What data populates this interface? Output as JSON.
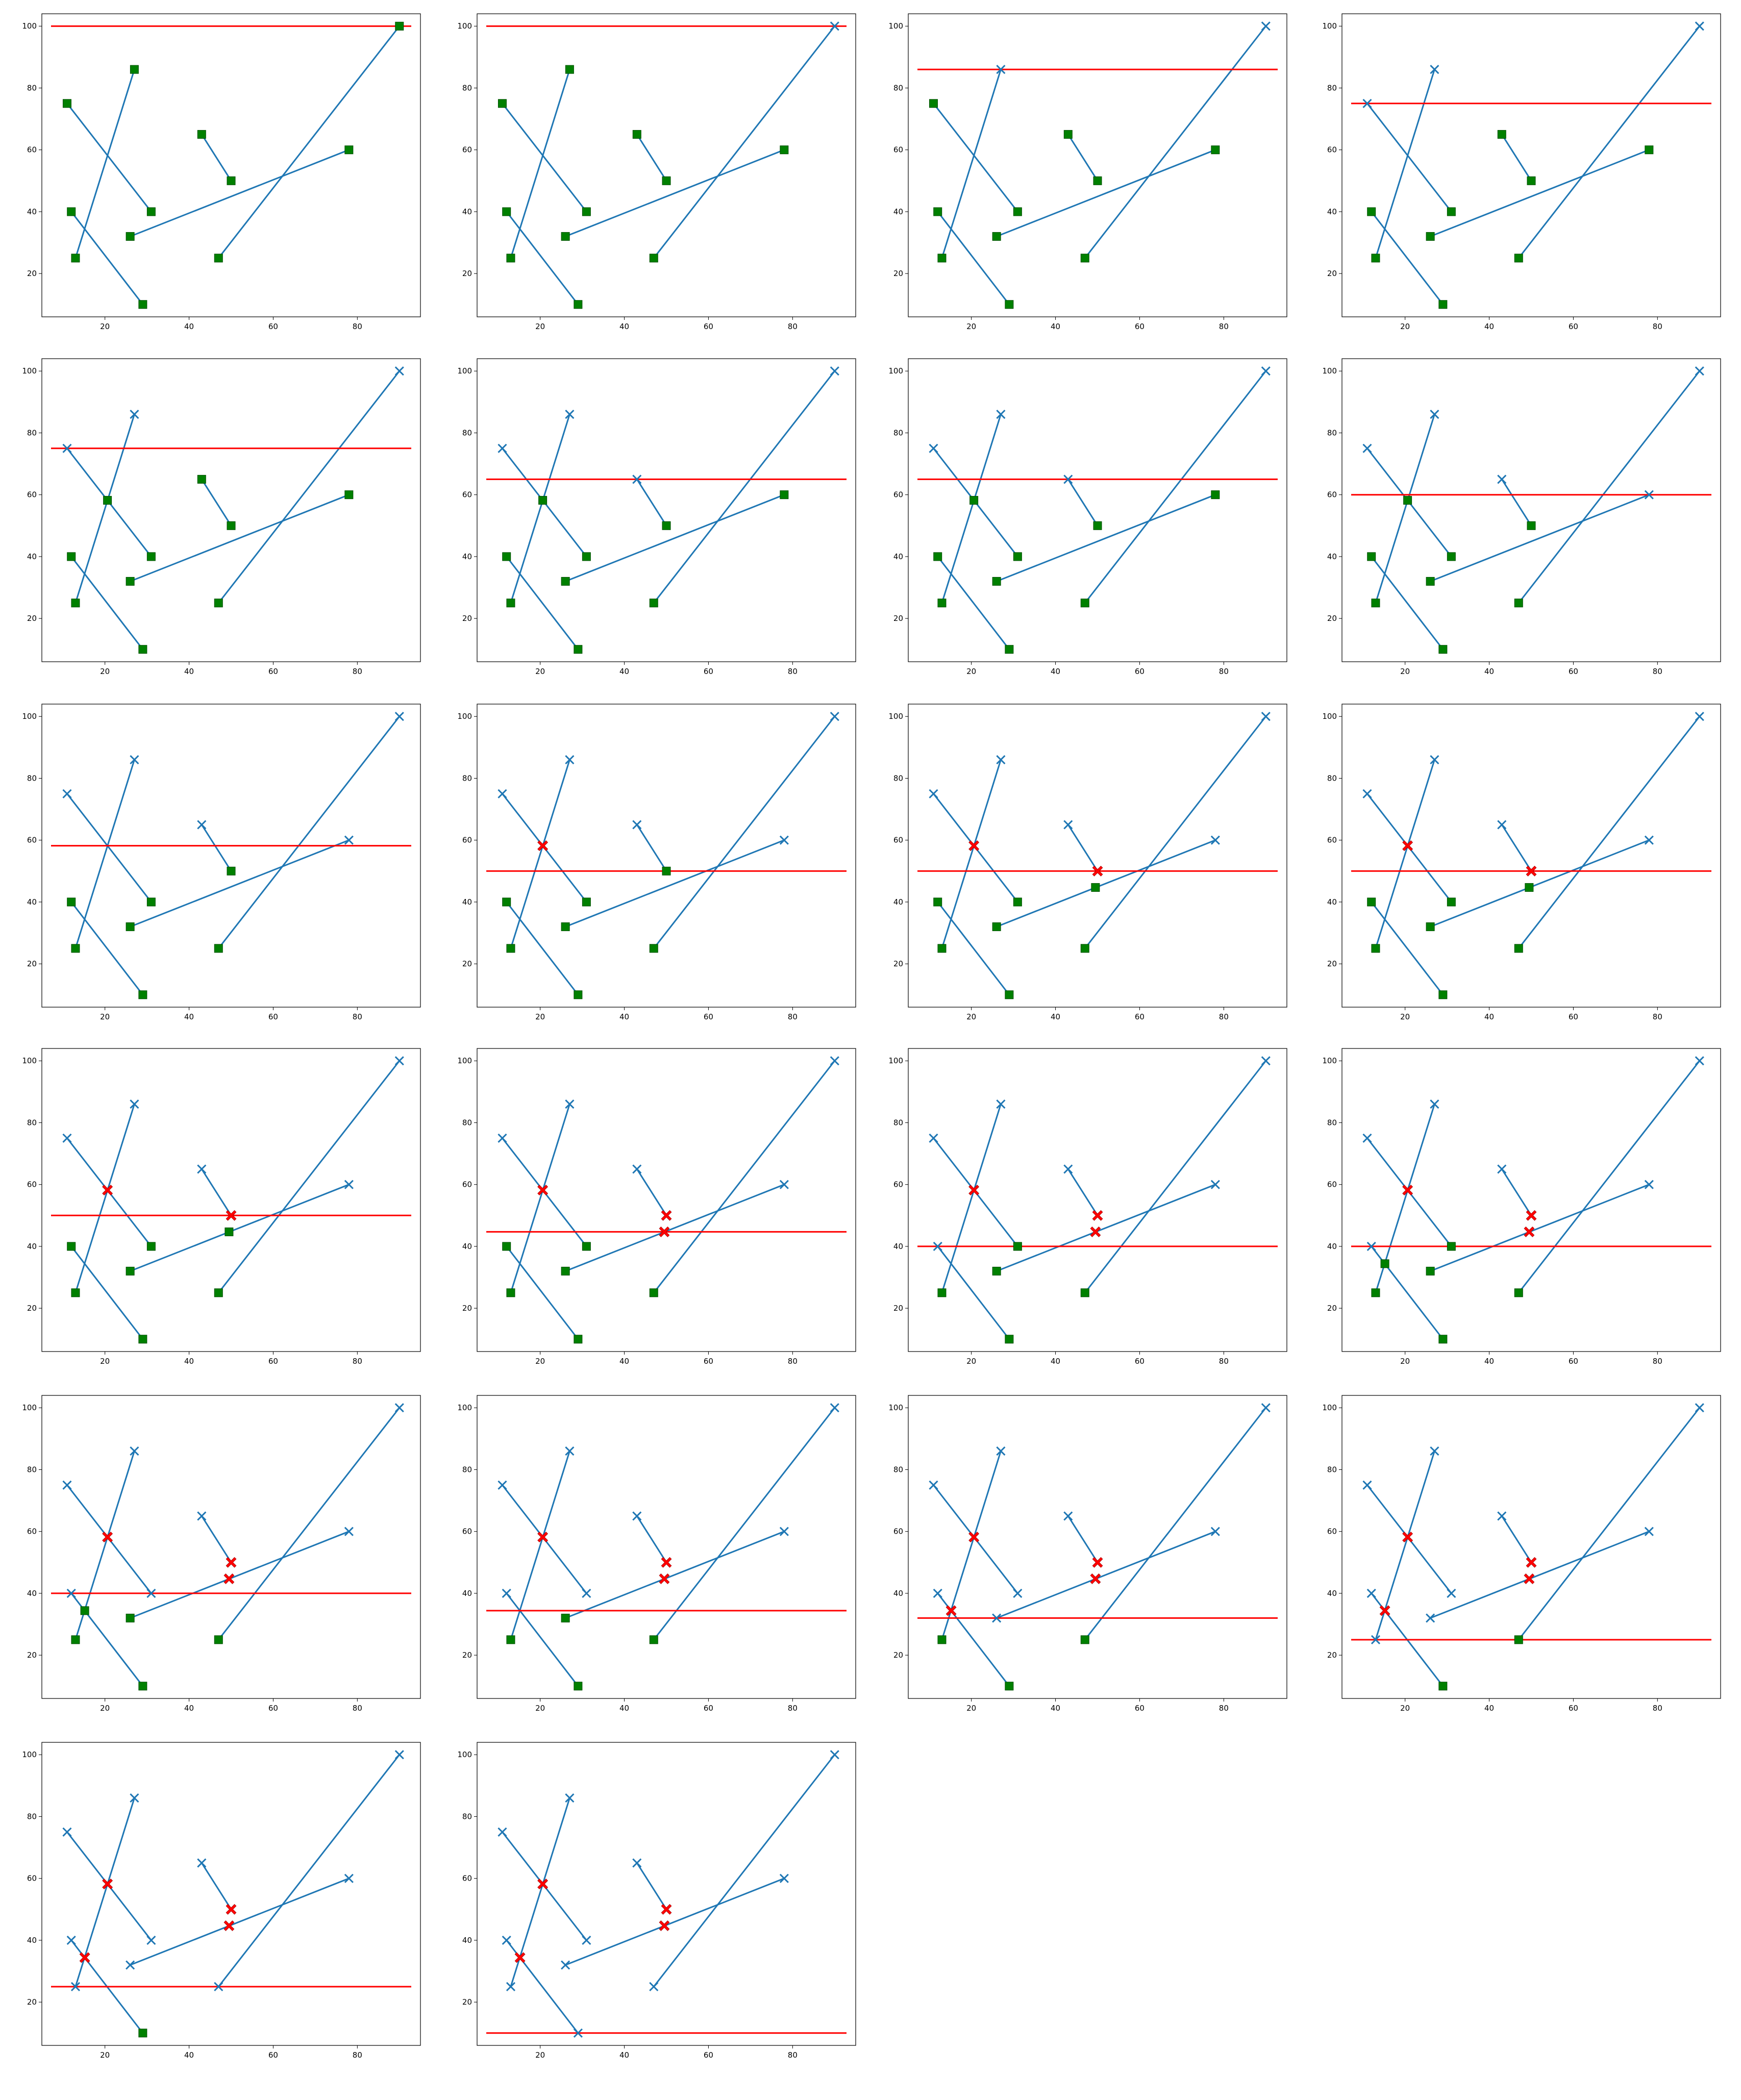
{
  "figure": {
    "layout": {
      "rows": 6,
      "cols": 4,
      "panel_count": 22
    },
    "axes": {
      "xlim": [
        5,
        95
      ],
      "ylim": [
        6,
        104
      ],
      "xticks": [
        20,
        40,
        60,
        80
      ],
      "yticks": [
        20,
        40,
        60,
        80,
        100
      ],
      "grid": false
    },
    "colors": {
      "segment": "#1f77b4",
      "sweep_line": "#ff0000",
      "active_event": "#008000",
      "intersection": "#ff0000",
      "processed": "#1f77b4"
    },
    "markers": {
      "active_event": "square",
      "processed": "x-mark",
      "intersection": "x-filled"
    }
  },
  "chart_data": {
    "type": "scatter",
    "description_of_series": "Line segments with endpoint markers; horizontal sweep line per panel",
    "segments": [
      {
        "name": "s1",
        "p1": [
          11,
          75
        ],
        "p2": [
          31,
          40
        ]
      },
      {
        "name": "s2",
        "p1": [
          13,
          25
        ],
        "p2": [
          27,
          86
        ]
      },
      {
        "name": "s3",
        "p1": [
          12,
          40
        ],
        "p2": [
          29,
          10
        ]
      },
      {
        "name": "s4",
        "p1": [
          26,
          32
        ],
        "p2": [
          78,
          60
        ]
      },
      {
        "name": "s5",
        "p1": [
          43,
          65
        ],
        "p2": [
          50,
          50
        ]
      },
      {
        "name": "s6",
        "p1": [
          47,
          25
        ],
        "p2": [
          90,
          100
        ]
      }
    ],
    "points": {
      "P1": [
        11,
        75
      ],
      "P2": [
        31,
        40
      ],
      "P3": [
        13,
        25
      ],
      "P4": [
        27,
        86
      ],
      "P5": [
        12,
        40
      ],
      "P6": [
        29,
        10
      ],
      "P7": [
        26,
        32
      ],
      "P8": [
        78,
        60
      ],
      "P9": [
        43,
        65
      ],
      "P10": [
        50,
        50
      ],
      "P11": [
        47,
        25
      ],
      "P12": [
        90,
        100
      ],
      "I1": [
        20.6,
        58.2
      ],
      "I2": [
        49.5,
        44.7
      ],
      "I3": [
        15.2,
        34.4
      ]
    },
    "panels": [
      {
        "sweep_y": 100,
        "pending": [
          "P1",
          "P2",
          "P3",
          "P4",
          "P5",
          "P6",
          "P7",
          "P8",
          "P9",
          "P10",
          "P11",
          "P12"
        ],
        "processed": [],
        "intersections": []
      },
      {
        "sweep_y": 100,
        "pending": [
          "P1",
          "P2",
          "P3",
          "P4",
          "P5",
          "P6",
          "P7",
          "P8",
          "P9",
          "P10",
          "P11"
        ],
        "processed": [
          "P12"
        ],
        "intersections": []
      },
      {
        "sweep_y": 86,
        "pending": [
          "P1",
          "P2",
          "P3",
          "P5",
          "P6",
          "P7",
          "P8",
          "P9",
          "P10",
          "P11"
        ],
        "processed": [
          "P12",
          "P4"
        ],
        "intersections": []
      },
      {
        "sweep_y": 75,
        "pending": [
          "P2",
          "P3",
          "P5",
          "P6",
          "P7",
          "P8",
          "P9",
          "P10",
          "P11"
        ],
        "processed": [
          "P12",
          "P4",
          "P1"
        ],
        "intersections": []
      },
      {
        "sweep_y": 75,
        "pending": [
          "P2",
          "P3",
          "P5",
          "P6",
          "P7",
          "P8",
          "P9",
          "P10",
          "P11",
          "I1"
        ],
        "processed": [
          "P12",
          "P4",
          "P1"
        ],
        "intersections": []
      },
      {
        "sweep_y": 65,
        "pending": [
          "P2",
          "P3",
          "P5",
          "P6",
          "P7",
          "P8",
          "P10",
          "P11",
          "I1"
        ],
        "processed": [
          "P12",
          "P4",
          "P1",
          "P9"
        ],
        "intersections": []
      },
      {
        "sweep_y": 65,
        "pending": [
          "P2",
          "P3",
          "P5",
          "P6",
          "P7",
          "P8",
          "P10",
          "P11",
          "I1"
        ],
        "processed": [
          "P12",
          "P4",
          "P1",
          "P9"
        ],
        "intersections": []
      },
      {
        "sweep_y": 60,
        "pending": [
          "P2",
          "P3",
          "P5",
          "P6",
          "P7",
          "P10",
          "P11",
          "I1"
        ],
        "processed": [
          "P12",
          "P4",
          "P1",
          "P9",
          "P8"
        ],
        "intersections": []
      },
      {
        "sweep_y": 58.2,
        "pending": [
          "P2",
          "P3",
          "P5",
          "P6",
          "P7",
          "P10",
          "P11"
        ],
        "processed": [
          "P12",
          "P4",
          "P1",
          "P9",
          "P8"
        ],
        "intersections": []
      },
      {
        "sweep_y": 50,
        "pending": [
          "P2",
          "P3",
          "P5",
          "P6",
          "P7",
          "P10",
          "P11"
        ],
        "processed": [
          "P12",
          "P4",
          "P1",
          "P9",
          "P8"
        ],
        "intersections": [
          "I1"
        ]
      },
      {
        "sweep_y": 50,
        "pending": [
          "P2",
          "P3",
          "P5",
          "P6",
          "P7",
          "P11",
          "I2"
        ],
        "processed": [
          "P12",
          "P4",
          "P1",
          "P9",
          "P8"
        ],
        "intersections": [
          "I1",
          "P10"
        ]
      },
      {
        "sweep_y": 50,
        "pending": [
          "P2",
          "P3",
          "P5",
          "P6",
          "P7",
          "P11",
          "I2"
        ],
        "processed": [
          "P12",
          "P4",
          "P1",
          "P9",
          "P8"
        ],
        "intersections": [
          "I1",
          "P10"
        ]
      },
      {
        "sweep_y": 50,
        "pending": [
          "P2",
          "P3",
          "P5",
          "P6",
          "P7",
          "P11",
          "I2"
        ],
        "processed": [
          "P12",
          "P4",
          "P1",
          "P9",
          "P8"
        ],
        "intersections": [
          "I1",
          "P10"
        ]
      },
      {
        "sweep_y": 44.7,
        "pending": [
          "P2",
          "P3",
          "P5",
          "P6",
          "P7",
          "P11"
        ],
        "processed": [
          "P12",
          "P4",
          "P1",
          "P9",
          "P8"
        ],
        "intersections": [
          "I1",
          "P10",
          "I2"
        ]
      },
      {
        "sweep_y": 40,
        "pending": [
          "P2",
          "P3",
          "P6",
          "P7",
          "P11"
        ],
        "processed": [
          "P12",
          "P4",
          "P1",
          "P9",
          "P8",
          "P5"
        ],
        "intersections": [
          "I1",
          "P10",
          "I2"
        ]
      },
      {
        "sweep_y": 40,
        "pending": [
          "P2",
          "P3",
          "P6",
          "P7",
          "P11",
          "I3"
        ],
        "processed": [
          "P12",
          "P4",
          "P1",
          "P9",
          "P8",
          "P5"
        ],
        "intersections": [
          "I1",
          "P10",
          "I2"
        ]
      },
      {
        "sweep_y": 40,
        "pending": [
          "P3",
          "P6",
          "P7",
          "P11",
          "I3"
        ],
        "processed": [
          "P12",
          "P4",
          "P1",
          "P9",
          "P8",
          "P5",
          "P2"
        ],
        "intersections": [
          "I1",
          "P10",
          "I2"
        ]
      },
      {
        "sweep_y": 34.4,
        "pending": [
          "P3",
          "P6",
          "P7",
          "P11"
        ],
        "processed": [
          "P12",
          "P4",
          "P1",
          "P9",
          "P8",
          "P5",
          "P2"
        ],
        "intersections": [
          "I1",
          "P10",
          "I2"
        ]
      },
      {
        "sweep_y": 32,
        "pending": [
          "P3",
          "P6",
          "P11"
        ],
        "processed": [
          "P12",
          "P4",
          "P1",
          "P9",
          "P8",
          "P5",
          "P2",
          "P7"
        ],
        "intersections": [
          "I1",
          "P10",
          "I2",
          "I3"
        ]
      },
      {
        "sweep_y": 25,
        "pending": [
          "P6",
          "P11"
        ],
        "processed": [
          "P12",
          "P4",
          "P1",
          "P9",
          "P8",
          "P5",
          "P2",
          "P7",
          "P3"
        ],
        "intersections": [
          "I1",
          "P10",
          "I2",
          "I3"
        ]
      },
      {
        "sweep_y": 25,
        "pending": [
          "P6"
        ],
        "processed": [
          "P12",
          "P4",
          "P1",
          "P9",
          "P8",
          "P5",
          "P2",
          "P7",
          "P3",
          "P11"
        ],
        "intersections": [
          "I1",
          "P10",
          "I2",
          "I3"
        ]
      },
      {
        "sweep_y": 10,
        "pending": [],
        "processed": [
          "P12",
          "P4",
          "P1",
          "P9",
          "P8",
          "P5",
          "P2",
          "P7",
          "P3",
          "P11",
          "P6"
        ],
        "intersections": [
          "I1",
          "P10",
          "I2",
          "I3"
        ]
      }
    ]
  }
}
